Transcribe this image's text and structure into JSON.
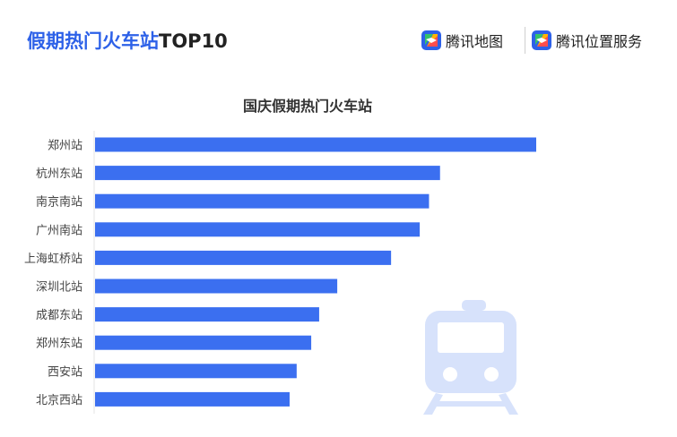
{
  "header": {
    "title_highlight": "假期热门火车站",
    "title_rest": "TOP10"
  },
  "brands": [
    {
      "name": "腾讯地图",
      "icon": "tencent-map-logo-icon"
    },
    {
      "name": "腾讯位置服务",
      "icon": "tencent-location-service-logo-icon"
    }
  ],
  "colors": {
    "accent": "#2d61e8",
    "bar": "#3b6ff0",
    "watermark": "#d7e2fb"
  },
  "chart_data": {
    "type": "bar",
    "orientation": "horizontal",
    "title": "国庆假期热门火车站",
    "categories": [
      "郑州站",
      "杭州东站",
      "南京南站",
      "广州南站",
      "上海虹桥站",
      "深圳北站",
      "成都东站",
      "郑州东站",
      "西安站",
      "北京西站"
    ],
    "values": [
      100,
      78.2,
      75.7,
      73.6,
      67.1,
      54.9,
      50.8,
      49.0,
      45.7,
      44.1
    ],
    "xlabel": "",
    "ylabel": "",
    "xlim": [
      0,
      100
    ],
    "grid": false,
    "legend": "none",
    "watermark_icon": "train-icon"
  }
}
